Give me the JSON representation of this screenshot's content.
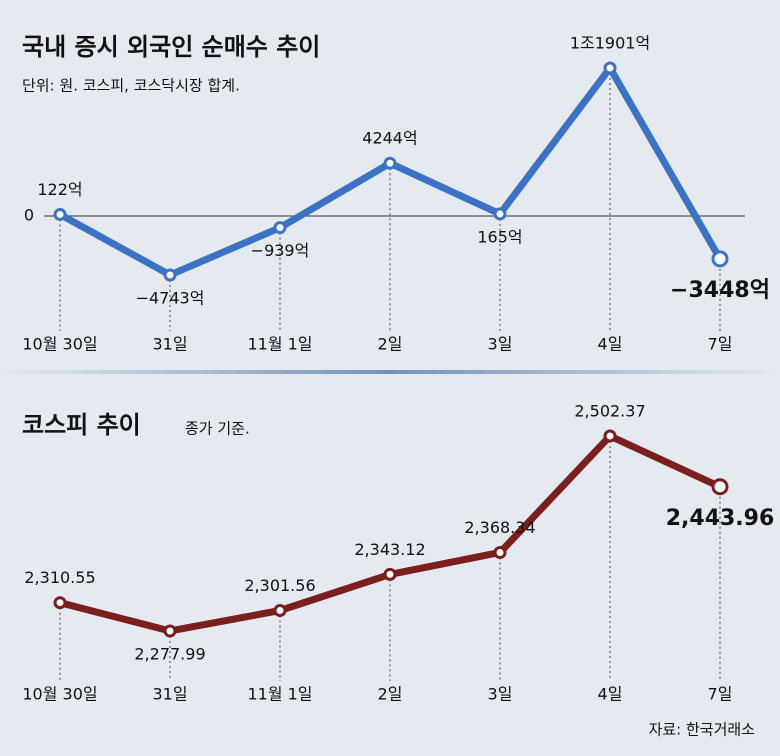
{
  "chart_data": [
    {
      "type": "line",
      "title": "국내 증시 외국인 순매수 추이",
      "subtitle": "단위: 원. 코스피, 코스닥시장 합계.",
      "categories": [
        "10월 30일",
        "31일",
        "11월 1일",
        "2일",
        "3일",
        "4일",
        "7일"
      ],
      "values": [
        122,
        -4743,
        -939,
        4244,
        165,
        11901,
        -3448
      ],
      "value_labels": [
        "122억",
        "−4743억",
        "−939억",
        "4244억",
        "165억",
        "1조1901억",
        "−3448억"
      ],
      "color": "#3a72c6",
      "ylim": [
        -6000,
        13000
      ],
      "yticks": [
        0
      ]
    },
    {
      "type": "line",
      "title": "코스피 추이",
      "subtitle": "종가 기준.",
      "categories": [
        "10월 30일",
        "31일",
        "11월 1일",
        "2일",
        "3일",
        "4일",
        "7일"
      ],
      "values": [
        2310.55,
        2277.99,
        2301.56,
        2343.12,
        2368.34,
        2502.37,
        2443.96
      ],
      "value_labels": [
        "2,310.55",
        "2,277.99",
        "2,301.56",
        "2,343.12",
        "2,368.34",
        "2,502.37",
        "2,443.96"
      ],
      "color": "#7a1e1e",
      "ylim": [
        2250,
        2520
      ],
      "yticks": []
    },
    {
      "source": "자료: 한국거래소"
    }
  ]
}
